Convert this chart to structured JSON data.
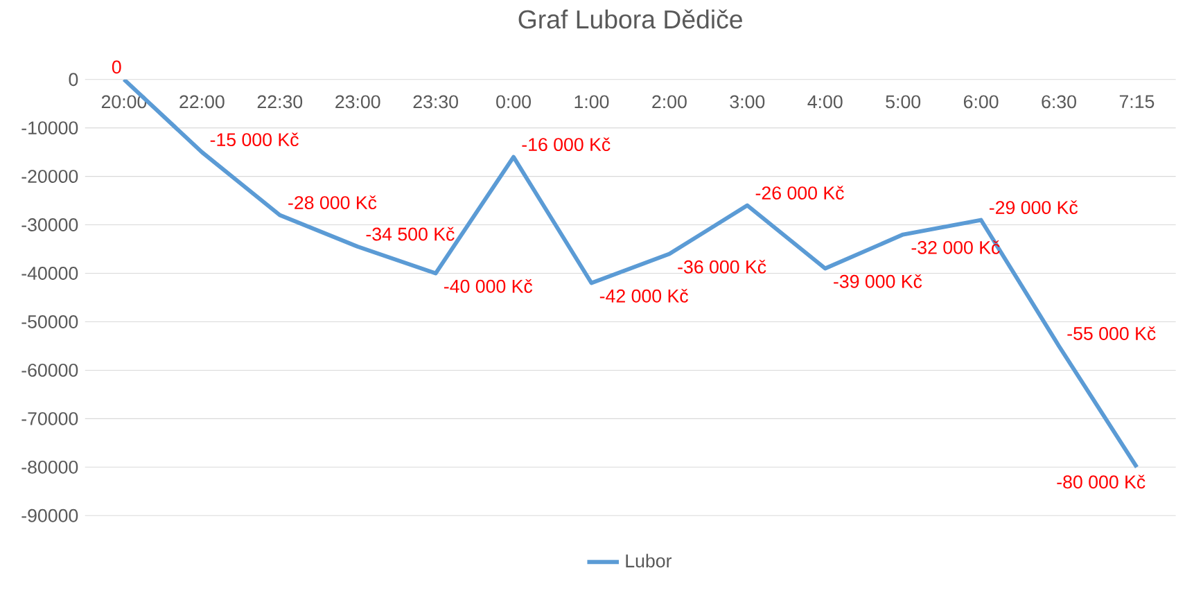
{
  "chart_data": {
    "type": "line",
    "title": "Graf Lubora Dědiče",
    "categories": [
      "20:00",
      "22:00",
      "22:30",
      "23:00",
      "23:30",
      "0:00",
      "1:00",
      "2:00",
      "3:00",
      "4:00",
      "5:00",
      "6:00",
      "6:30",
      "7:15"
    ],
    "series": [
      {
        "name": "Lubor",
        "color": "#5b9bd5",
        "values": [
          0,
          -15000,
          -28000,
          -34500,
          -40000,
          -16000,
          -42000,
          -36000,
          -26000,
          -39000,
          -32000,
          -29000,
          -55000,
          -80000
        ],
        "value_labels": [
          "0",
          "-15 000 Kč",
          "-28 000 Kč",
          "-34 500 Kč",
          "-40 000 Kč",
          "-16 000 Kč",
          "-42 000 Kč",
          "-36 000 Kč",
          "-26 000 Kč",
          "-39 000 Kč",
          "-32 000 Kč",
          "-29 000 Kč",
          "-55 000 Kč",
          "-80 000 Kč"
        ]
      }
    ],
    "ylim": [
      -90000,
      0
    ],
    "yticks": [
      0,
      -10000,
      -20000,
      -30000,
      -40000,
      -50000,
      -60000,
      -70000,
      -80000,
      -90000
    ],
    "grid": "y",
    "legend": "bottom",
    "marker": "none",
    "line_style": "solid"
  }
}
